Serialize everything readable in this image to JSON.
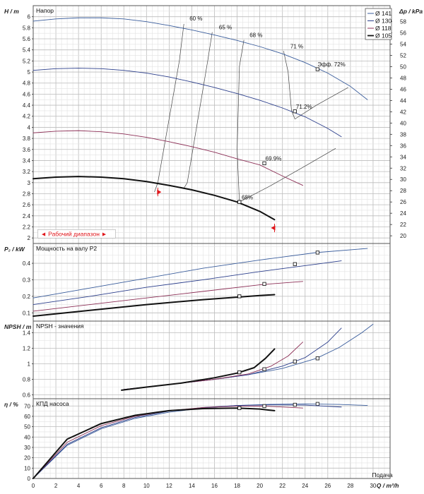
{
  "chart_data": {
    "type": "line",
    "x_axis": {
      "label": "Q / m³/h",
      "ticks": [
        0,
        2,
        4,
        6,
        8,
        10,
        12,
        14,
        16,
        18,
        20,
        22,
        24,
        26,
        28,
        30
      ],
      "range": [
        0,
        31.5
      ],
      "extra_label": "Подача"
    },
    "colors": {
      "d141": "#3a5d9c",
      "d130": "#2c3f8c",
      "d118": "#8c2f56",
      "d105": "#111111",
      "marker_red": "#e0161b",
      "iso": "#444444"
    },
    "legend": [
      "Ø 141",
      "Ø 130",
      "Ø 118",
      "Ø 105"
    ],
    "panels": [
      {
        "key": "head",
        "title": "Напор",
        "ylabel": "H / m",
        "ylim": [
          1.9,
          6.2
        ],
        "yticks": [
          2,
          2.2,
          2.4,
          2.6,
          2.8,
          3,
          3.2,
          3.4,
          3.6,
          3.8,
          4,
          4.2,
          4.4,
          4.6,
          4.8,
          5,
          5.2,
          5.4,
          5.6,
          5.8,
          6
        ],
        "right_axis": {
          "label": "Δp / kPa",
          "ticks": [
            20,
            22,
            24,
            26,
            28,
            30,
            32,
            34,
            36,
            38,
            40,
            42,
            44,
            46,
            48,
            50,
            52,
            54,
            56,
            58
          ]
        },
        "series": [
          {
            "name": "Ø 141",
            "color_key": "d141",
            "width": 0.9,
            "x": [
              0,
              2,
              4,
              6,
              8,
              10,
              12,
              14,
              16,
              18,
              20,
              22,
              24,
              26,
              28,
              29.5
            ],
            "y": [
              5.92,
              5.96,
              5.98,
              5.98,
              5.96,
              5.91,
              5.84,
              5.76,
              5.67,
              5.57,
              5.46,
              5.33,
              5.17,
              4.98,
              4.74,
              4.5
            ],
            "op": [
              25.1,
              5.05
            ]
          },
          {
            "name": "Ø 130",
            "color_key": "d130",
            "width": 0.9,
            "x": [
              0,
              2,
              4,
              6,
              8,
              10,
              12,
              14,
              16,
              18,
              20,
              22,
              24,
              26,
              27.2
            ],
            "y": [
              5.03,
              5.06,
              5.07,
              5.06,
              5.03,
              4.98,
              4.91,
              4.82,
              4.72,
              4.61,
              4.49,
              4.35,
              4.19,
              3.98,
              3.83
            ],
            "op": [
              23.1,
              4.29
            ]
          },
          {
            "name": "Ø 118",
            "color_key": "d118",
            "width": 0.9,
            "x": [
              0,
              2,
              4,
              6,
              8,
              10,
              12,
              14,
              16,
              18,
              20,
              22,
              23.8
            ],
            "y": [
              3.9,
              3.93,
              3.94,
              3.92,
              3.88,
              3.82,
              3.74,
              3.65,
              3.55,
              3.43,
              3.32,
              3.12,
              2.95
            ],
            "op": [
              20.4,
              3.35
            ]
          },
          {
            "name": "Ø 105",
            "color_key": "d105",
            "width": 2.0,
            "x": [
              0,
              2,
              4,
              6,
              8,
              10,
              12,
              14,
              16,
              18,
              20,
              21.3
            ],
            "y": [
              3.07,
              3.1,
              3.11,
              3.1,
              3.07,
              3.02,
              2.95,
              2.87,
              2.77,
              2.65,
              2.48,
              2.33
            ],
            "op": [
              18.2,
              2.65
            ]
          }
        ],
        "iso_lines": [
          {
            "label": "60 %",
            "x": [
              13.3,
              12.9,
              11.0,
              10.7
            ],
            "y": [
              5.87,
              5.2,
              3.0,
              2.83
            ]
          },
          {
            "label": "65 %",
            "x": [
              15.8,
              15.4,
              13.6,
              13.3
            ],
            "y": [
              5.72,
              5.2,
              3.0,
              2.9
            ]
          },
          {
            "label": "68 %",
            "x": [
              18.6,
              18.2,
              18.0,
              18.2
            ],
            "y": [
              5.58,
              5.1,
              3.6,
              2.65
            ]
          },
          {
            "label": "71 %",
            "x": [
              22.1,
              22.5,
              22.8,
              23.1,
              25.0,
              27.8
            ],
            "y": [
              5.38,
              5.0,
              4.3,
              4.15,
              4.4,
              4.72
            ]
          },
          {
            "label": "",
            "x": [
              18.2,
              21.0,
              24.0,
              26.7
            ],
            "y": [
              2.65,
              2.95,
              3.3,
              3.62
            ]
          }
        ],
        "eff_labels": [
          {
            "text": "60 %",
            "x": 13.8,
            "y": 5.93
          },
          {
            "text": "65 %",
            "x": 16.4,
            "y": 5.77
          },
          {
            "text": "68 %",
            "x": 19.1,
            "y": 5.63
          },
          {
            "text": "71 %",
            "x": 22.7,
            "y": 5.43
          },
          {
            "text": "Эфф.  72%",
            "x": 25.1,
            "y": 5.1
          },
          {
            "text": "71.2%",
            "x": 23.2,
            "y": 4.34
          },
          {
            "text": "69.9%",
            "x": 20.5,
            "y": 3.4
          },
          {
            "text": "68%",
            "x": 18.4,
            "y": 2.7
          }
        ],
        "range_markers": [
          {
            "x": 11.0,
            "y": 2.83
          },
          {
            "x": 21.3,
            "y": 2.18
          }
        ],
        "operating_range_label": "◄ Рабочий диапазон ►"
      },
      {
        "key": "power",
        "title": "Мощность на валу P2",
        "ylabel": "P₂ / kW",
        "ylim": [
          0.05,
          0.52
        ],
        "yticks": [
          0.1,
          0.2,
          0.3,
          0.4
        ],
        "series": [
          {
            "name": "Ø 141",
            "color_key": "d141",
            "width": 0.9,
            "x": [
              0,
              5,
              10,
              15,
              20,
              25,
              29.5
            ],
            "y": [
              0.19,
              0.25,
              0.31,
              0.37,
              0.42,
              0.465,
              0.49
            ],
            "op": [
              25.1,
              0.465
            ]
          },
          {
            "name": "Ø 130",
            "color_key": "d130",
            "width": 0.9,
            "x": [
              0,
              5,
              10,
              15,
              20,
              25,
              27.2
            ],
            "y": [
              0.15,
              0.2,
              0.255,
              0.3,
              0.35,
              0.395,
              0.415
            ],
            "op": [
              23.1,
              0.395
            ]
          },
          {
            "name": "Ø 118",
            "color_key": "d118",
            "width": 0.9,
            "x": [
              0,
              5,
              10,
              15,
              20,
              23.8
            ],
            "y": [
              0.11,
              0.15,
              0.19,
              0.23,
              0.27,
              0.29
            ],
            "op": [
              20.4,
              0.275
            ]
          },
          {
            "name": "Ø 105",
            "color_key": "d105",
            "width": 2.0,
            "x": [
              0,
              5,
              10,
              15,
              20,
              21.3
            ],
            "y": [
              0.08,
              0.115,
              0.15,
              0.18,
              0.205,
              0.21
            ],
            "op": [
              18.2,
              0.2
            ]
          }
        ]
      },
      {
        "key": "npsh",
        "title": "NPSH - значения",
        "ylabel": "NPSH / m",
        "ylim": [
          0.55,
          1.55
        ],
        "yticks": [
          0.6,
          0.8,
          1,
          1.2,
          1.4
        ],
        "series": [
          {
            "name": "Ø 141",
            "color_key": "d141",
            "width": 0.9,
            "x": [
              8,
              10,
              13,
              16,
              19,
              22,
              25,
              27,
              29,
              30
            ],
            "y": [
              0.67,
              0.7,
              0.75,
              0.8,
              0.86,
              0.94,
              1.07,
              1.21,
              1.4,
              1.51
            ],
            "op": [
              25.1,
              1.07
            ]
          },
          {
            "name": "Ø 130",
            "color_key": "d130",
            "width": 0.9,
            "x": [
              8,
              10,
              13,
              16,
              19,
              22,
              24,
              26,
              27.2
            ],
            "y": [
              0.67,
              0.7,
              0.75,
              0.8,
              0.86,
              0.97,
              1.08,
              1.28,
              1.46
            ],
            "op": [
              23.1,
              1.03
            ]
          },
          {
            "name": "Ø 118",
            "color_key": "d118",
            "width": 0.9,
            "x": [
              8,
              10,
              13,
              16,
              19,
              21,
              22.5,
              23.8
            ],
            "y": [
              0.67,
              0.7,
              0.75,
              0.8,
              0.87,
              0.97,
              1.1,
              1.28
            ],
            "op": [
              20.4,
              0.93
            ]
          },
          {
            "name": "Ø 105",
            "color_key": "d105",
            "width": 2.0,
            "x": [
              7.8,
              10,
              13,
              16,
              18,
              19.5,
              20.5,
              21.3
            ],
            "y": [
              0.66,
              0.7,
              0.75,
              0.82,
              0.88,
              0.95,
              1.07,
              1.19
            ],
            "op": [
              18.2,
              0.89
            ]
          }
        ]
      },
      {
        "key": "eff",
        "title": "КПД насоса",
        "ylabel": "η / %",
        "ylim": [
          0,
          77
        ],
        "yticks": [
          0,
          10,
          20,
          30,
          40,
          50,
          60,
          70
        ],
        "series": [
          {
            "name": "Ø 141",
            "color_key": "d141",
            "width": 0.9,
            "x": [
              0,
              3,
              6,
              9,
              12,
              15,
              18,
              21,
              24,
              27,
              29.5
            ],
            "y": [
              0,
              32,
              48,
              58,
              64,
              68,
              70.5,
              71.6,
              72,
              71.5,
              70.5
            ],
            "op": [
              25.1,
              72
            ]
          },
          {
            "name": "Ø 130",
            "color_key": "d130",
            "width": 0.9,
            "x": [
              0,
              3,
              6,
              9,
              12,
              15,
              18,
              21,
              24,
              27.2
            ],
            "y": [
              0,
              33,
              49,
              59,
              65,
              68.5,
              70.5,
              71.1,
              70.8,
              69
            ],
            "op": [
              23.1,
              71.2
            ]
          },
          {
            "name": "Ø 118",
            "color_key": "d118",
            "width": 0.9,
            "x": [
              0,
              3,
              6,
              9,
              12,
              15,
              18,
              20.4,
              23.8
            ],
            "y": [
              0,
              35,
              51,
              60,
              65.5,
              68.5,
              69.8,
              69.9,
              68
            ],
            "op": [
              20.4,
              69.9
            ]
          },
          {
            "name": "Ø 105",
            "color_key": "d105",
            "width": 2.0,
            "x": [
              0,
              3,
              6,
              9,
              12,
              15,
              18,
              20,
              21.3
            ],
            "y": [
              0,
              38,
              53,
              61,
              65.5,
              67.5,
              68,
              67,
              65.5
            ],
            "op": [
              18.2,
              68
            ]
          }
        ]
      }
    ]
  }
}
